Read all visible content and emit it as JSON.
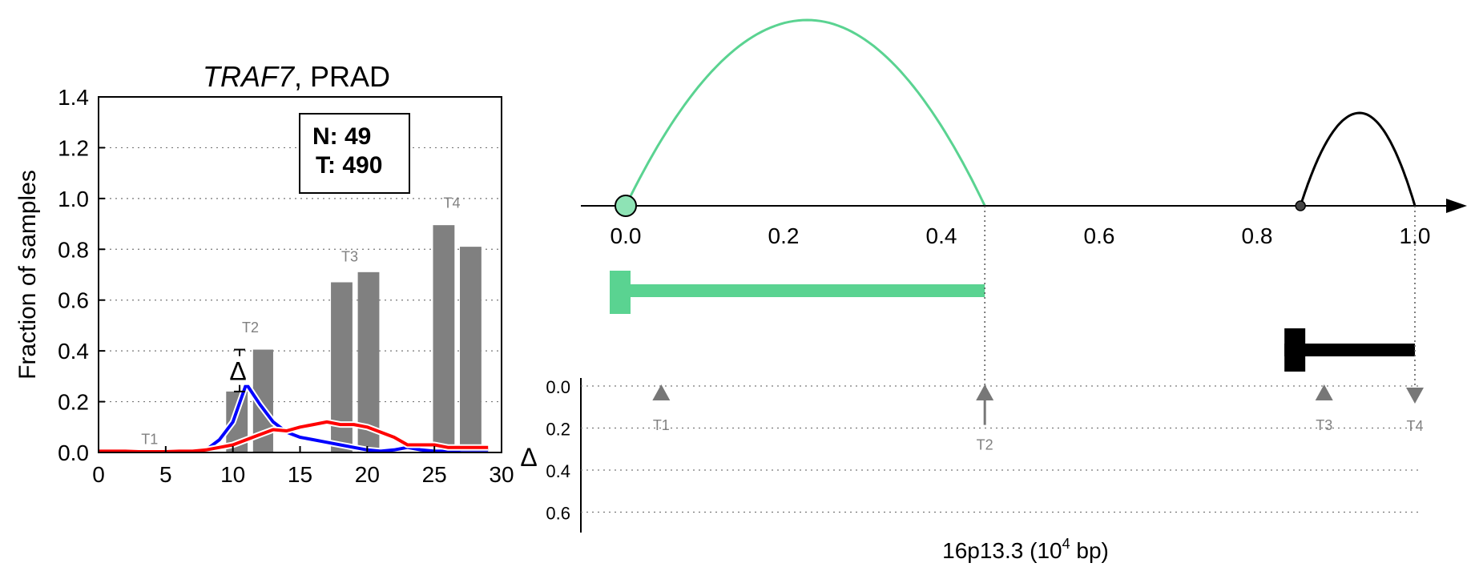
{
  "chart_data": [
    {
      "type": "bar",
      "title": {
        "gene": "TRAF7",
        "rest": ", PRAD"
      },
      "ylabel": "Fraction of samples",
      "xlim": [
        0,
        30
      ],
      "ylim": [
        0,
        1.4
      ],
      "xticks": [
        "0",
        "5",
        "10",
        "15",
        "20",
        "25",
        "30"
      ],
      "yticks": [
        "0.0",
        "0.2",
        "0.4",
        "0.6",
        "0.8",
        "1.0",
        "1.2",
        "1.4"
      ],
      "grid": true,
      "legend_box": {
        "n_line": "N: 49",
        "t_line": "T: 490",
        "placement": "top-right"
      },
      "bars": [
        {
          "label": "T2",
          "x0": 9.5,
          "x1": 11.1,
          "value": 0.24
        },
        {
          "label": "",
          "x0": 11.5,
          "x1": 13.0,
          "value": 0.405
        },
        {
          "label": "T3",
          "x0": 17.3,
          "x1": 18.9,
          "value": 0.67
        },
        {
          "label": "",
          "x0": 19.3,
          "x1": 20.9,
          "value": 0.71
        },
        {
          "label": "T4",
          "x0": 24.9,
          "x1": 26.5,
          "value": 0.895
        },
        {
          "label": "",
          "x0": 26.9,
          "x1": 28.5,
          "value": 0.81
        }
      ],
      "bar_labels": [
        {
          "text": "T1",
          "x": 3.8,
          "y": 0.02
        },
        {
          "text": "T2",
          "x": 11.3,
          "y": 0.46
        },
        {
          "text": "T3",
          "x": 18.7,
          "y": 0.74
        },
        {
          "text": "T4",
          "x": 26.3,
          "y": 0.95
        }
      ],
      "delta_marker": {
        "symbol": "Δ",
        "x": 10.5,
        "y_low": 0.24,
        "y_high": 0.405
      },
      "series": [
        {
          "color": "#0000ff",
          "x": [
            0,
            1,
            2,
            3,
            4,
            5,
            6,
            7,
            8,
            9,
            10,
            11,
            12,
            13,
            14,
            15,
            16,
            17,
            18,
            19,
            20,
            21,
            22,
            23,
            24,
            25,
            26,
            27,
            28,
            29
          ],
          "values": [
            0,
            0,
            0,
            0,
            0,
            0,
            0,
            0,
            0.01,
            0.05,
            0.12,
            0.27,
            0.19,
            0.12,
            0.08,
            0.06,
            0.05,
            0.04,
            0.03,
            0.02,
            0.01,
            0.005,
            0.01,
            0.02,
            0.01,
            0.005,
            0.005,
            0.01,
            0.01,
            0.01
          ]
        },
        {
          "color": "#ff0000",
          "x": [
            0,
            1,
            2,
            3,
            4,
            5,
            6,
            7,
            8,
            9,
            10,
            11,
            12,
            13,
            14,
            15,
            16,
            17,
            18,
            19,
            20,
            21,
            22,
            23,
            24,
            25,
            26,
            27,
            28,
            29
          ],
          "values": [
            0.005,
            0.005,
            0.005,
            0.003,
            0.003,
            0.003,
            0.005,
            0.005,
            0.01,
            0.02,
            0.03,
            0.05,
            0.07,
            0.09,
            0.085,
            0.1,
            0.11,
            0.12,
            0.11,
            0.11,
            0.1,
            0.08,
            0.06,
            0.03,
            0.03,
            0.03,
            0.02,
            0.02,
            0.02,
            0.02
          ]
        }
      ]
    },
    {
      "type": "diagram",
      "xlim": [
        0,
        1.0
      ],
      "xticks": [
        "0.0",
        "0.2",
        "0.4",
        "0.6",
        "0.8",
        "1.0"
      ],
      "arcs": [
        {
          "color": "#5ad391",
          "x0": 0.0,
          "x1": 0.455,
          "peak": 0.23,
          "height": 1.0
        },
        {
          "color": "#000000",
          "x0": 0.855,
          "x1": 1.0,
          "peak": 0.93,
          "height": 0.5
        }
      ],
      "segments": [
        {
          "color": "#5ad391",
          "x0": 0.0,
          "x1": 0.455
        },
        {
          "color": "#000000",
          "x0": 0.855,
          "x1": 1.0
        }
      ],
      "delta_axis": {
        "label": "Δ",
        "yticks": [
          "0.0",
          "0.2",
          "0.4",
          "0.6"
        ],
        "ylim": [
          0,
          0.7
        ],
        "markers": [
          {
            "label": "T1",
            "x": 0.045,
            "value": 0.0,
            "direction": "up"
          },
          {
            "label": "T2",
            "x": 0.455,
            "value": 0.17,
            "direction": "up"
          },
          {
            "label": "T3",
            "x": 0.885,
            "value": 0.0,
            "direction": "up"
          },
          {
            "label": "T4",
            "x": 1.0,
            "value": 0.0,
            "direction": "down"
          }
        ]
      },
      "xlabel": "16p13.3 (10",
      "xlabel_sup": "4",
      "xlabel_tail": " bp)"
    }
  ]
}
